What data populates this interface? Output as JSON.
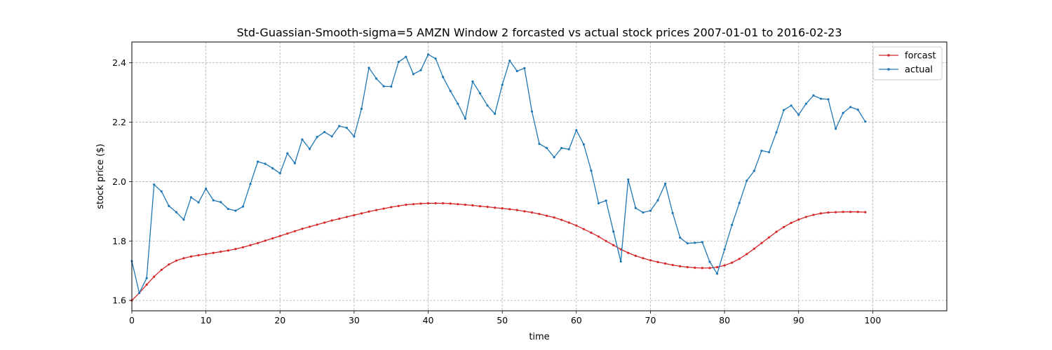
{
  "chart_data": {
    "type": "line",
    "title": "Std-Guassian-Smooth-sigma=5 AMZN Window 2 forcasted vs actual stock prices 2007-01-01 to 2016-02-23",
    "xlabel": "time",
    "ylabel": "stock price ($)",
    "xlim": [
      0,
      110
    ],
    "ylim": [
      1.565,
      2.47
    ],
    "xticks": [
      0,
      10,
      20,
      30,
      40,
      50,
      60,
      70,
      80,
      90,
      100
    ],
    "yticks": [
      1.6,
      1.8,
      2.0,
      2.2,
      2.4
    ],
    "xtick_labels": [
      "0",
      "10",
      "20",
      "30",
      "40",
      "50",
      "60",
      "70",
      "80",
      "90",
      "100"
    ],
    "ytick_labels": [
      "1.6",
      "1.8",
      "2.0",
      "2.2",
      "2.4"
    ],
    "grid": true,
    "legend_position": "top-right",
    "series": [
      {
        "name": "forcast",
        "color": "#d62728",
        "x_start": 0,
        "values": [
          1.6,
          1.625,
          1.653,
          1.68,
          1.703,
          1.721,
          1.734,
          1.742,
          1.748,
          1.752,
          1.756,
          1.76,
          1.764,
          1.768,
          1.773,
          1.779,
          1.786,
          1.793,
          1.801,
          1.809,
          1.817,
          1.825,
          1.833,
          1.841,
          1.848,
          1.855,
          1.862,
          1.869,
          1.875,
          1.881,
          1.887,
          1.893,
          1.899,
          1.904,
          1.909,
          1.914,
          1.918,
          1.922,
          1.924,
          1.926,
          1.927,
          1.927,
          1.927,
          1.926,
          1.924,
          1.922,
          1.92,
          1.917,
          1.915,
          1.912,
          1.91,
          1.907,
          1.904,
          1.9,
          1.896,
          1.891,
          1.885,
          1.879,
          1.871,
          1.862,
          1.852,
          1.84,
          1.828,
          1.815,
          1.8,
          1.786,
          1.772,
          1.76,
          1.75,
          1.742,
          1.735,
          1.729,
          1.724,
          1.719,
          1.715,
          1.712,
          1.71,
          1.709,
          1.709,
          1.712,
          1.718,
          1.727,
          1.74,
          1.756,
          1.774,
          1.793,
          1.812,
          1.831,
          1.847,
          1.861,
          1.872,
          1.881,
          1.888,
          1.893,
          1.896,
          1.897,
          1.898,
          1.898,
          1.898,
          1.897
        ]
      },
      {
        "name": "actual",
        "color": "#1f77b4",
        "x_start": 0,
        "values": [
          1.732,
          1.625,
          1.675,
          1.99,
          1.967,
          1.918,
          1.897,
          1.872,
          1.947,
          1.93,
          1.976,
          1.937,
          1.931,
          1.908,
          1.902,
          1.916,
          1.992,
          2.067,
          2.06,
          2.045,
          2.028,
          2.095,
          2.062,
          2.142,
          2.11,
          2.15,
          2.167,
          2.152,
          2.187,
          2.181,
          2.152,
          2.245,
          2.383,
          2.347,
          2.321,
          2.32,
          2.403,
          2.42,
          2.362,
          2.375,
          2.428,
          2.414,
          2.352,
          2.305,
          2.262,
          2.212,
          2.337,
          2.297,
          2.256,
          2.228,
          2.326,
          2.407,
          2.372,
          2.382,
          2.236,
          2.127,
          2.113,
          2.082,
          2.113,
          2.109,
          2.173,
          2.125,
          2.037,
          1.927,
          1.936,
          1.832,
          1.731,
          2.007,
          1.911,
          1.896,
          1.902,
          1.937,
          1.993,
          1.894,
          1.811,
          1.792,
          1.794,
          1.796,
          1.73,
          1.69,
          1.772,
          1.854,
          1.928,
          2.003,
          2.036,
          2.104,
          2.099,
          2.166,
          2.241,
          2.256,
          2.225,
          2.262,
          2.29,
          2.279,
          2.277,
          2.178,
          2.231,
          2.251,
          2.242,
          2.202
        ]
      }
    ]
  },
  "legend": {
    "items": [
      {
        "label": "forcast",
        "color": "#d62728"
      },
      {
        "label": "actual",
        "color": "#1f77b4"
      }
    ]
  },
  "colors": {
    "grid": "#b0b0b0",
    "axes": "#000000",
    "background": "#ffffff"
  }
}
